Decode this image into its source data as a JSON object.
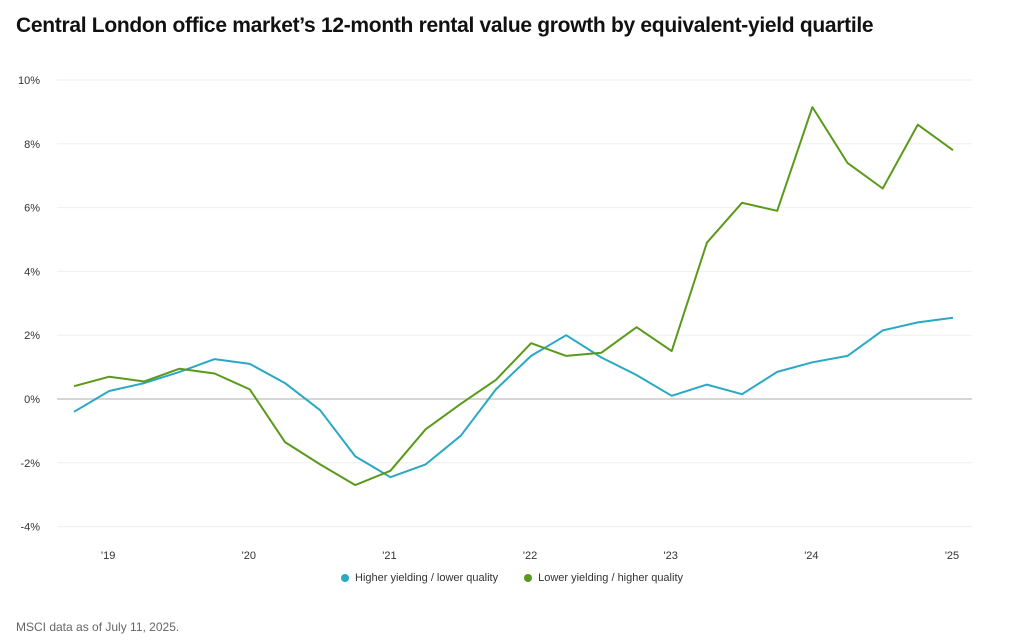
{
  "chart_data": {
    "type": "line",
    "title": "Central London office market’s 12-month rental value growth by equivalent-yield quartile",
    "xlabel": "",
    "ylabel": "",
    "ylim": [
      -4,
      10
    ],
    "yticks": [
      "10%",
      "8%",
      "6%",
      "4%",
      "2%",
      "0%",
      "-2%",
      "-4%"
    ],
    "ytick_values": [
      10,
      8,
      6,
      4,
      2,
      0,
      -2,
      -4
    ],
    "xticks": [
      "'19",
      "'20",
      "'21",
      "'22",
      "'23",
      "'24",
      "'25"
    ],
    "x": [
      "2018Q4",
      "2019Q1",
      "2019Q2",
      "2019Q3",
      "2019Q4",
      "2020Q1",
      "2020Q2",
      "2020Q3",
      "2020Q4",
      "2021Q1",
      "2021Q2",
      "2021Q3",
      "2021Q4",
      "2022Q1",
      "2022Q2",
      "2022Q3",
      "2022Q4",
      "2023Q1",
      "2023Q2",
      "2023Q3",
      "2023Q4",
      "2024Q1",
      "2024Q2",
      "2024Q3",
      "2024Q4",
      "2025Q1"
    ],
    "grid": true,
    "legend_position": "bottom",
    "series": [
      {
        "name": "Higher yielding / lower quality",
        "color": "#2aa8c4",
        "values": [
          -0.4,
          0.25,
          0.5,
          0.85,
          1.25,
          1.1,
          0.5,
          -0.35,
          -1.8,
          -2.45,
          -2.05,
          -1.15,
          0.3,
          1.35,
          2.0,
          1.3,
          0.75,
          0.1,
          0.45,
          0.15,
          0.85,
          1.15,
          1.35,
          2.15,
          2.4,
          2.55
        ]
      },
      {
        "name": "Lower yielding / higher quality",
        "color": "#5a9a1a",
        "values": [
          0.4,
          0.7,
          0.55,
          0.95,
          0.8,
          0.3,
          -1.35,
          -2.05,
          -2.7,
          -2.25,
          -0.95,
          -0.15,
          0.6,
          1.75,
          1.35,
          1.45,
          2.25,
          1.5,
          4.9,
          6.15,
          5.9,
          9.15,
          7.4,
          6.6,
          8.6,
          7.8
        ]
      }
    ]
  },
  "footer": {
    "source": "MSCI data as of July 11, 2025."
  }
}
